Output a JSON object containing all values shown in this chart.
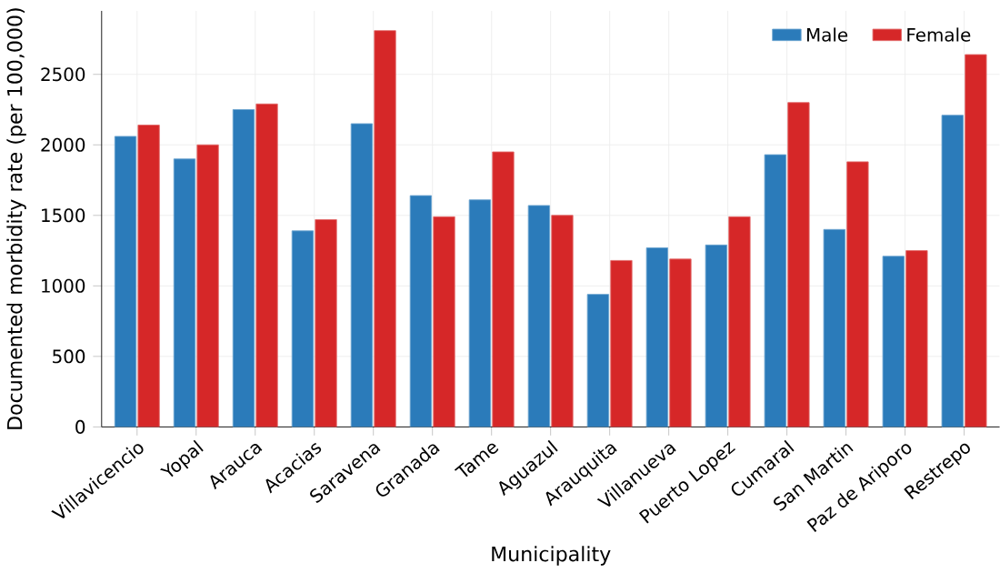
{
  "chart_data": {
    "type": "bar",
    "xlabel": "Municipality",
    "ylabel": "Documented morbidity rate (per 100,000)",
    "categories": [
      "Villavicencio",
      "Yopal",
      "Arauca",
      "Acacias",
      "Saravena",
      "Granada",
      "Tame",
      "Aguazul",
      "Arauquita",
      "Villanueva",
      "Puerto Lopez",
      "Cumaral",
      "San Martin",
      "Paz de Ariporo",
      "Restrepo"
    ],
    "series": [
      {
        "name": "Male",
        "color": "#2b7bba",
        "values": [
          2060,
          1900,
          2250,
          1390,
          2150,
          1640,
          1610,
          1570,
          940,
          1270,
          1290,
          1930,
          1400,
          1210,
          2210
        ]
      },
      {
        "name": "Female",
        "color": "#d62728",
        "values": [
          2140,
          2000,
          2290,
          1470,
          2810,
          1490,
          1950,
          1500,
          1180,
          1190,
          1490,
          2300,
          1880,
          1250,
          2640
        ]
      }
    ],
    "ylim": [
      0,
      2950
    ],
    "yticks": [
      0,
      500,
      1000,
      1500,
      2000,
      2500
    ],
    "grid": true,
    "legend": "top right"
  }
}
